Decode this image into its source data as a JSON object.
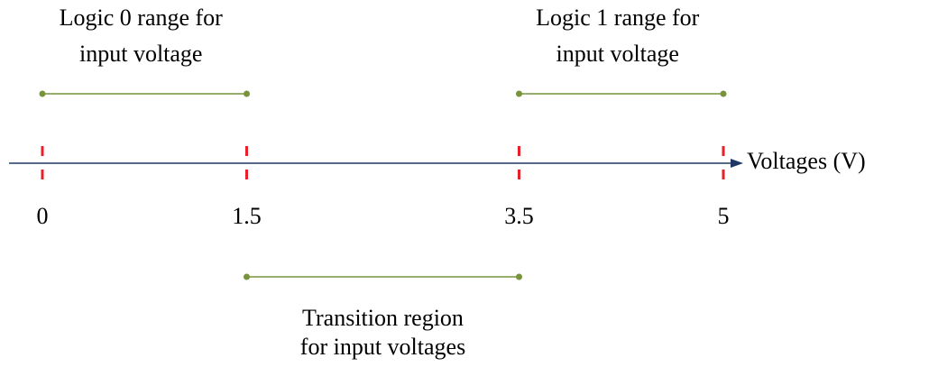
{
  "axis": {
    "label": "Voltages (V)",
    "ticks": [
      0,
      1.5,
      3.5,
      5
    ]
  },
  "ranges": [
    {
      "label": [
        "Logic 0 range for",
        "input voltage"
      ],
      "from": 0,
      "to": 1.5,
      "side": "above"
    },
    {
      "label": [
        "Logic 1 range for",
        "input voltage"
      ],
      "from": 3.5,
      "to": 5,
      "side": "above"
    },
    {
      "label": [
        "Transition region",
        "for input voltages"
      ],
      "from": 1.5,
      "to": 3.5,
      "side": "below"
    }
  ]
}
